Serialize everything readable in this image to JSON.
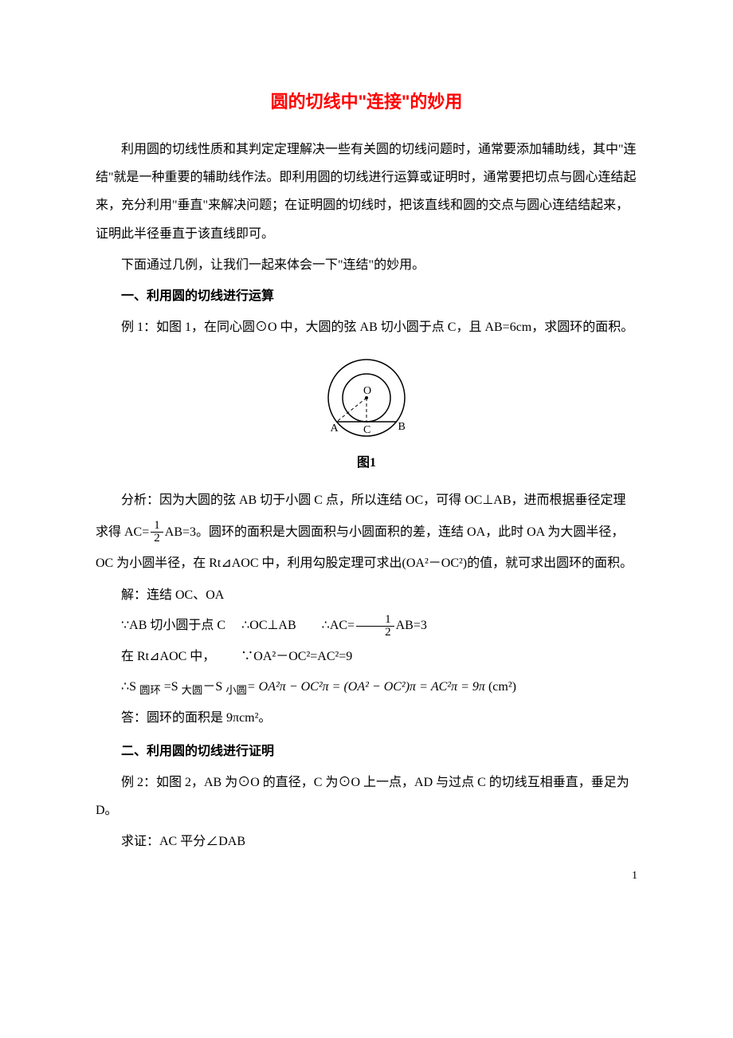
{
  "title": "圆的切线中\"连接\"的妙用",
  "intro_p1": "利用圆的切线性质和其判定定理解决一些有关圆的切线问题时，通常要添加辅助线，其中\"连结\"就是一种重要的辅助线作法。即利用圆的切线进行运算或证明时，通常要把切点与圆心连结起来，充分利用\"垂直\"来解决问题；在证明圆的切线时，把该直线和圆的交点与圆心连结结起来，证明此半径垂直于该直线即可。",
  "intro_p2": "下面通过几例，让我们一起来体会一下\"连结\"的妙用。",
  "section1_title": "一、利用圆的切线进行运算",
  "example1_intro": "例 1：如图 1，在同心圆⊙O 中，大圆的弦 AB 切小圆于点 C，且 AB=6cm，求圆环的面积。",
  "figure1": {
    "caption": "图1",
    "outer_radius": 48,
    "inner_radius": 30,
    "stroke": "#000000",
    "stroke_width": 1.5,
    "label_O": "O",
    "label_A": "A",
    "label_B": "B",
    "label_C": "C",
    "dash": "4,3"
  },
  "analysis_prefix": "分析：因为大圆的弦 AB 切于小圆 C 点，所以连结 OC，可得 OC⊥AB，进而根据垂径定理",
  "analysis_line2_a": "求得 AC=",
  "frac_half": {
    "num": "1",
    "den": "2"
  },
  "analysis_line2_b": "AB=3。圆环的面积是大圆面积与小圆面积的差，连结 OA，此时 OA 为大圆半径，",
  "analysis_line3": "OC 为小圆半径，在 Rt⊿AOC 中，利用勾股定理可求出(OA²－OC²)的值，就可求出圆环的面积。",
  "solve_intro": "解：连结 OC、OA",
  "step_oc_a": "∵AB 切小圆于点 C  ∴OC⊥AB  ∴AC=",
  "step_oc_b": "AB=3",
  "step_rt": "在 Rt⊿AOC 中，  ∵OA²－OC²=AC²=9",
  "step_area_a": "∴S ",
  "sub_ring": "圆环",
  "step_area_b": " =S ",
  "sub_big": "大圆",
  "step_area_c": "－S ",
  "sub_small": "小圆",
  "step_area_formula": "= OA²π − OC²π = (OA² − OC²)π = AC²π = 9π",
  "step_area_unit": " (cm²)",
  "answer": "答：圆环的面积是 9πcm²。",
  "section2_title": "二、利用圆的切线进行证明",
  "example2_intro": "例 2：如图 2，AB 为⊙O 的直径，C 为⊙O 上一点，AD 与过点 C 的切线互相垂直，垂足为 D。",
  "example2_prove": "求证：AC 平分∠DAB",
  "page_number": "1",
  "colors": {
    "title_color": "#ff0000",
    "text_color": "#000000",
    "background": "#ffffff"
  },
  "font_sizes": {
    "title": 22,
    "body": 16
  }
}
